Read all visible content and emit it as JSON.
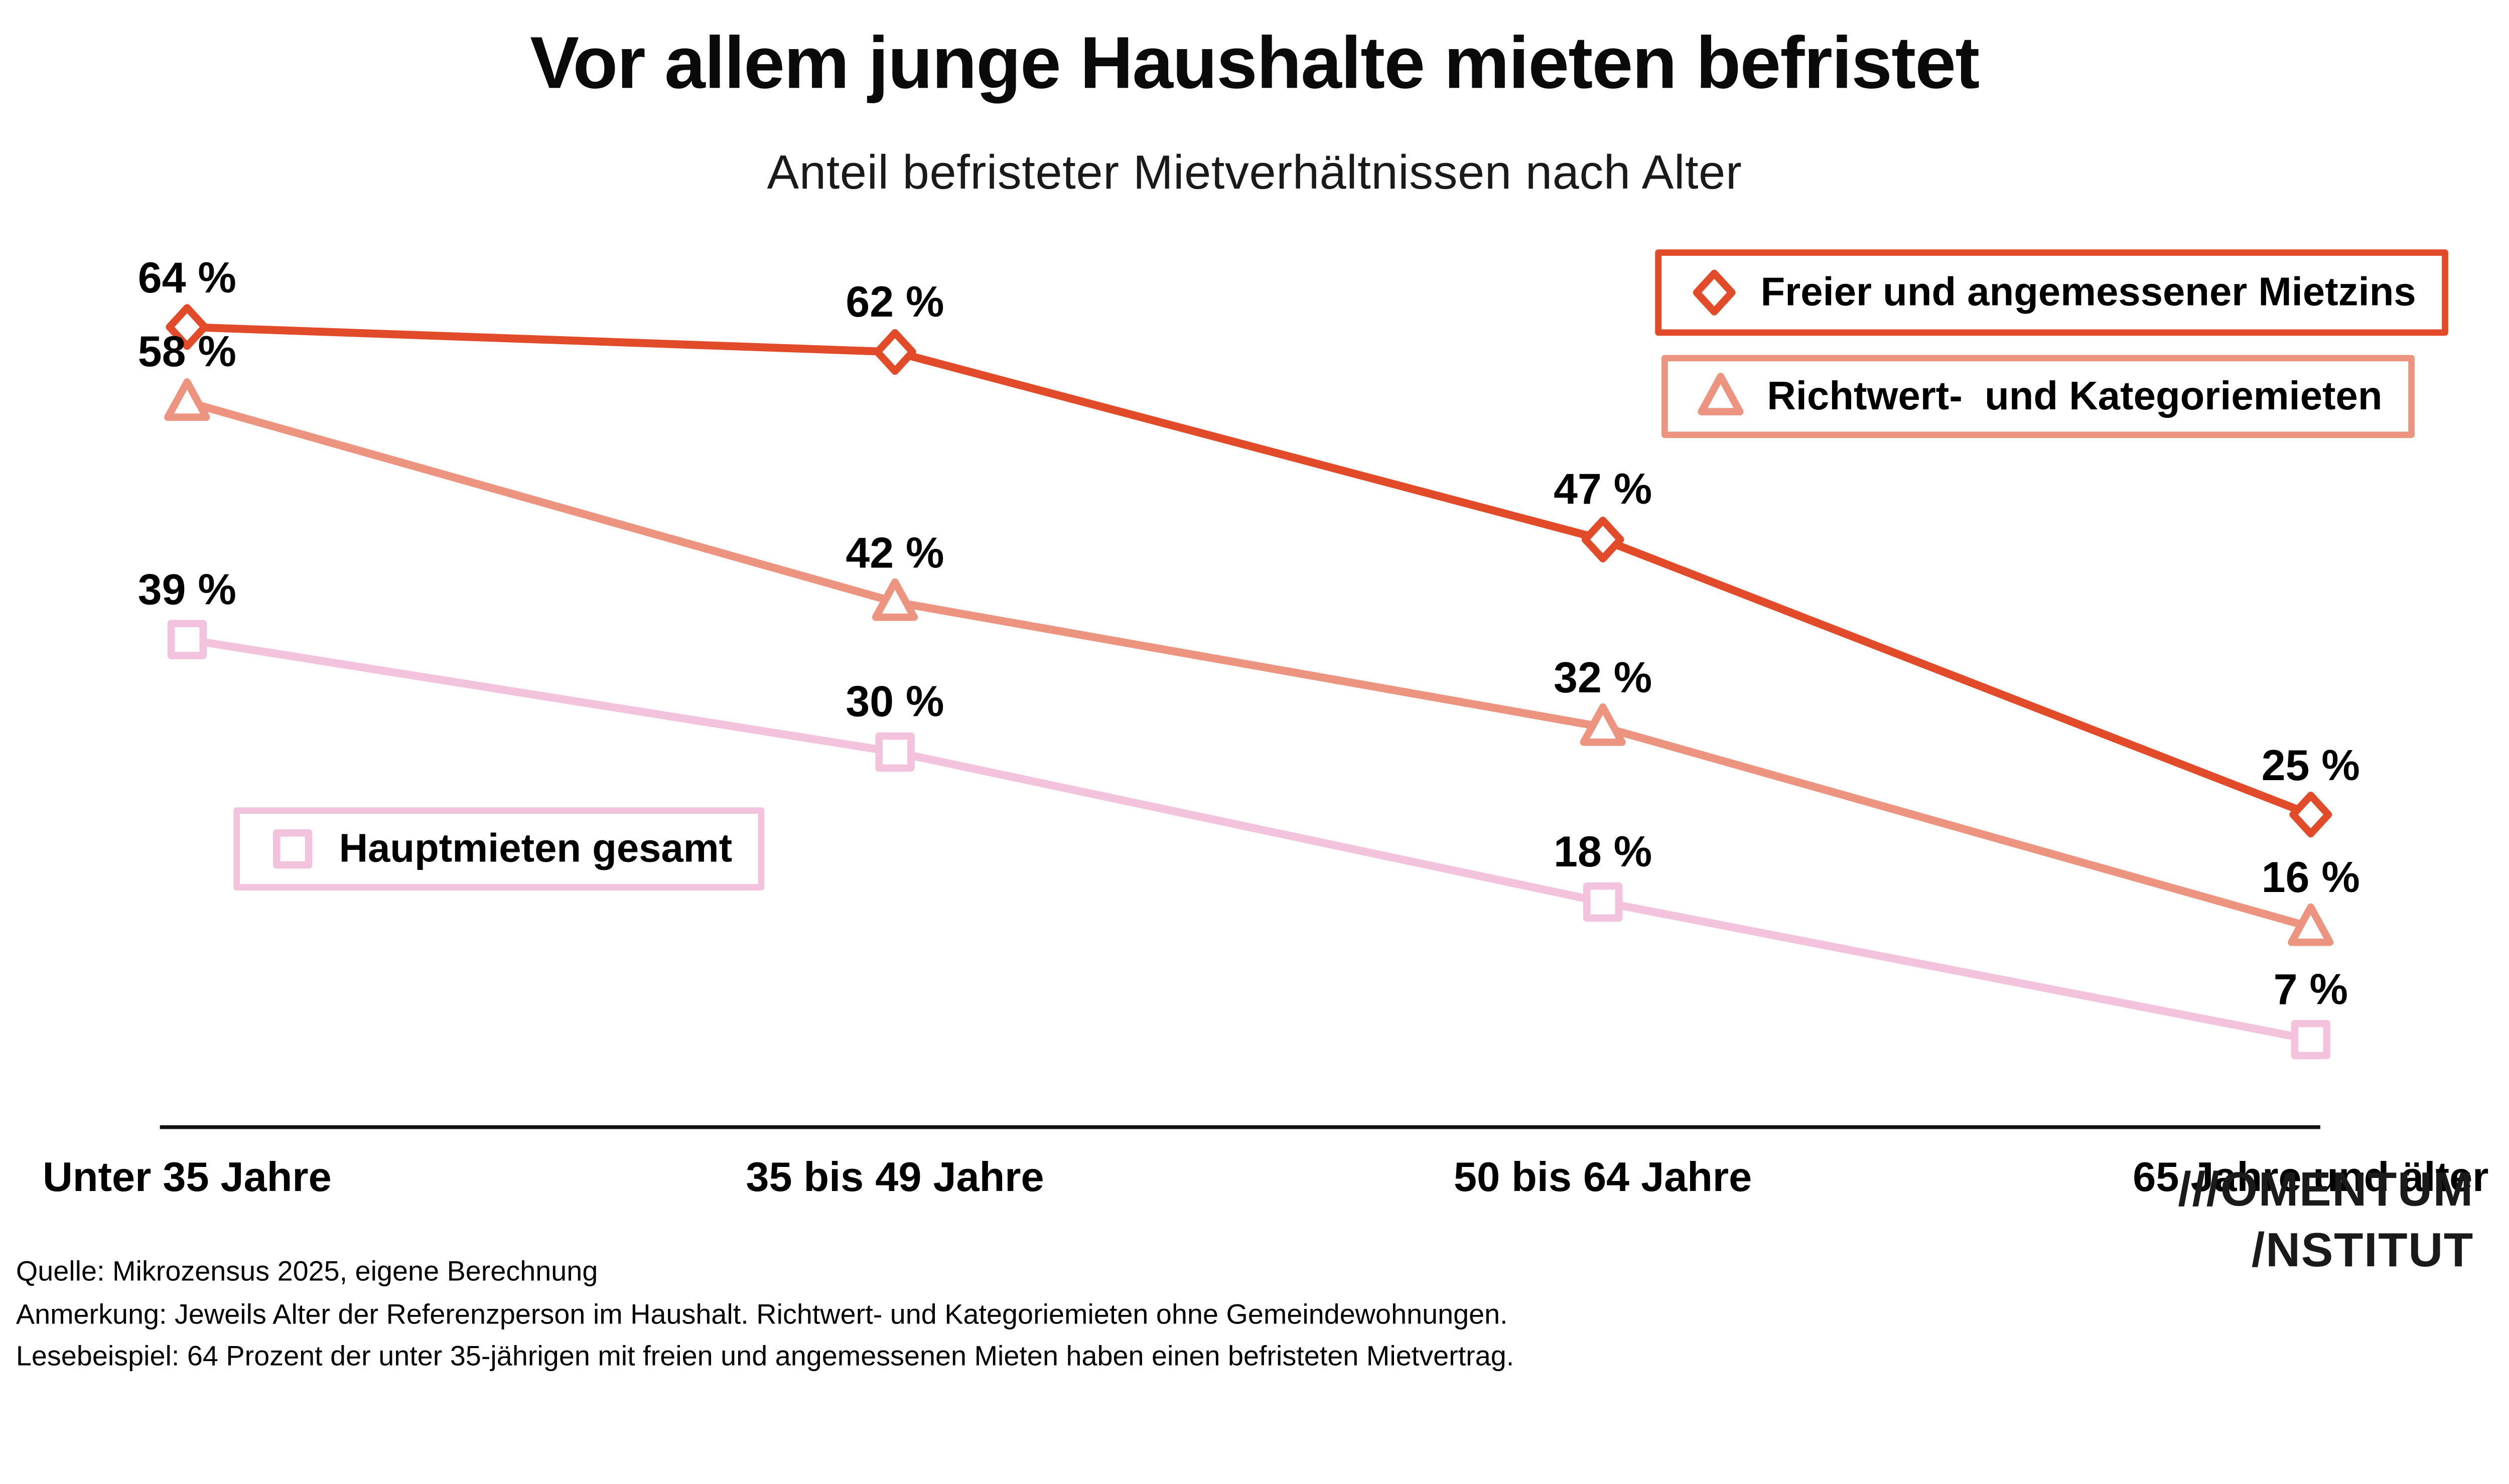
{
  "page": {
    "title": "Vor allem junge Haushalte mieten befristet",
    "subtitle": "Anteil befristeter Mietverhältnissen nach Alter"
  },
  "chart_data": {
    "type": "line",
    "title": "Vor allem junge Haushalte mieten befristet",
    "subtitle": "Anteil befristeter Mietverhältnissen nach Alter",
    "categories": [
      "Unter 35 Jahre",
      "35 bis 49 Jahre",
      "50 bis 64 Jahre",
      "65 Jahre und älter"
    ],
    "unit": "%",
    "xlabel": "",
    "ylabel": "",
    "ylim": [
      0,
      70
    ],
    "grid": false,
    "axis_color": "#111111",
    "series": [
      {
        "name": "Freier und angemessener Mietzins",
        "marker": "diamond",
        "color": "#E24B2A",
        "values": [
          64,
          62,
          47,
          25
        ],
        "labels": [
          "64 %",
          "62 %",
          "47 %",
          "25 %"
        ],
        "legend_position": "top-right"
      },
      {
        "name": "Richtwert-  und Kategoriemieten",
        "marker": "triangle",
        "color": "#EC9480",
        "values": [
          58,
          42,
          32,
          16
        ],
        "labels": [
          "58 %",
          "42 %",
          "32 %",
          "16 %"
        ],
        "legend_position": "top-right"
      },
      {
        "name": "Hauptmieten gesamt",
        "marker": "square",
        "color": "#F3C3DD",
        "values": [
          39,
          30,
          18,
          7
        ],
        "labels": [
          "39 %",
          "30 %",
          "18 %",
          "7 %"
        ],
        "legend_position": "mid-left"
      }
    ]
  },
  "footer": {
    "source": "Quelle: Mikrozensus 2025, eigene Berechnung",
    "note": "Anmerkung: Jeweils Alter der Referenzperson im Haushalt. Richtwert- und Kategoriemieten ohne Gemeindewohnungen.",
    "reading_example": "Lesebeispiel: 64 Prozent der unter 35-jährigen mit freien und angemessenen Mieten haben einen befristeten Mietvertrag."
  },
  "logo": {
    "line1": "///OMENTUM",
    "line2": "/NSTITUT"
  }
}
